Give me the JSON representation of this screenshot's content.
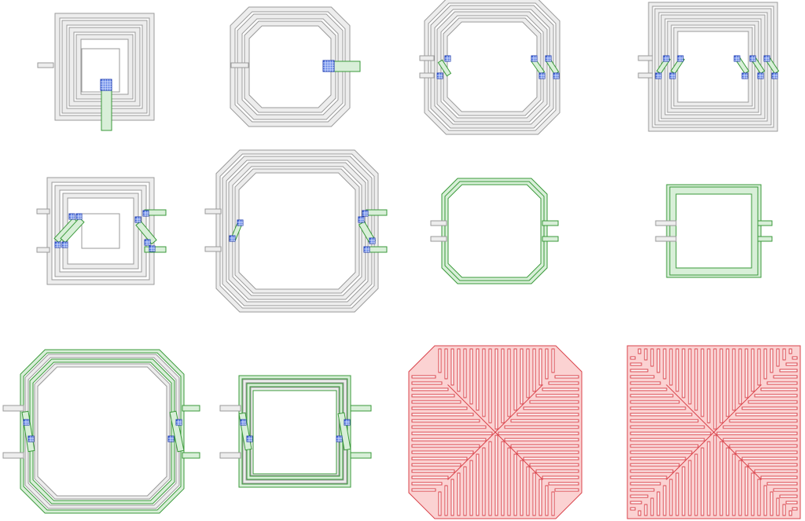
{
  "figure": {
    "layers": {
      "metal_top": "#9a9a9a",
      "metal_top_fill": "#ededed",
      "metal_underpass": "#3a9a3a",
      "metal_underpass_fill": "#d8efd8",
      "via": "#1f3cb0",
      "ground_shield": "#d9434b",
      "ground_shield_fill": "#fbd2d2"
    },
    "panels": [
      {
        "id": "square-spiral",
        "shape": "square",
        "turns": 4,
        "crossovers": 0,
        "underpass": true
      },
      {
        "id": "octagonal-spiral",
        "shape": "octagon",
        "turns": 3,
        "crossovers": 0,
        "underpass": true
      },
      {
        "id": "octagonal-symmetric",
        "shape": "octagon",
        "turns": 4,
        "crossovers": 3
      },
      {
        "id": "square-symmetric",
        "shape": "square",
        "turns": 5,
        "crossovers": 4
      },
      {
        "id": "square-symmetric-center-tap",
        "shape": "square",
        "turns": 3,
        "crossovers": 2
      },
      {
        "id": "octagonal-symmetric-large",
        "shape": "octagon",
        "turns": 4,
        "crossovers": 2
      },
      {
        "id": "octagonal-single-turn",
        "shape": "octagon",
        "turns": 1,
        "crossovers": 0
      },
      {
        "id": "square-single-turn",
        "shape": "square",
        "turns": 1,
        "crossovers": 0
      },
      {
        "id": "octagonal-stacked",
        "shape": "octagon",
        "turns": 4,
        "crossovers": 2
      },
      {
        "id": "square-stacked",
        "shape": "square",
        "turns": 4,
        "crossovers": 2
      },
      {
        "id": "octagonal-ground-shield",
        "shape": "octagon",
        "pattern": "patterned-ground-shield"
      },
      {
        "id": "square-ground-shield",
        "shape": "square",
        "pattern": "patterned-ground-shield"
      }
    ]
  }
}
